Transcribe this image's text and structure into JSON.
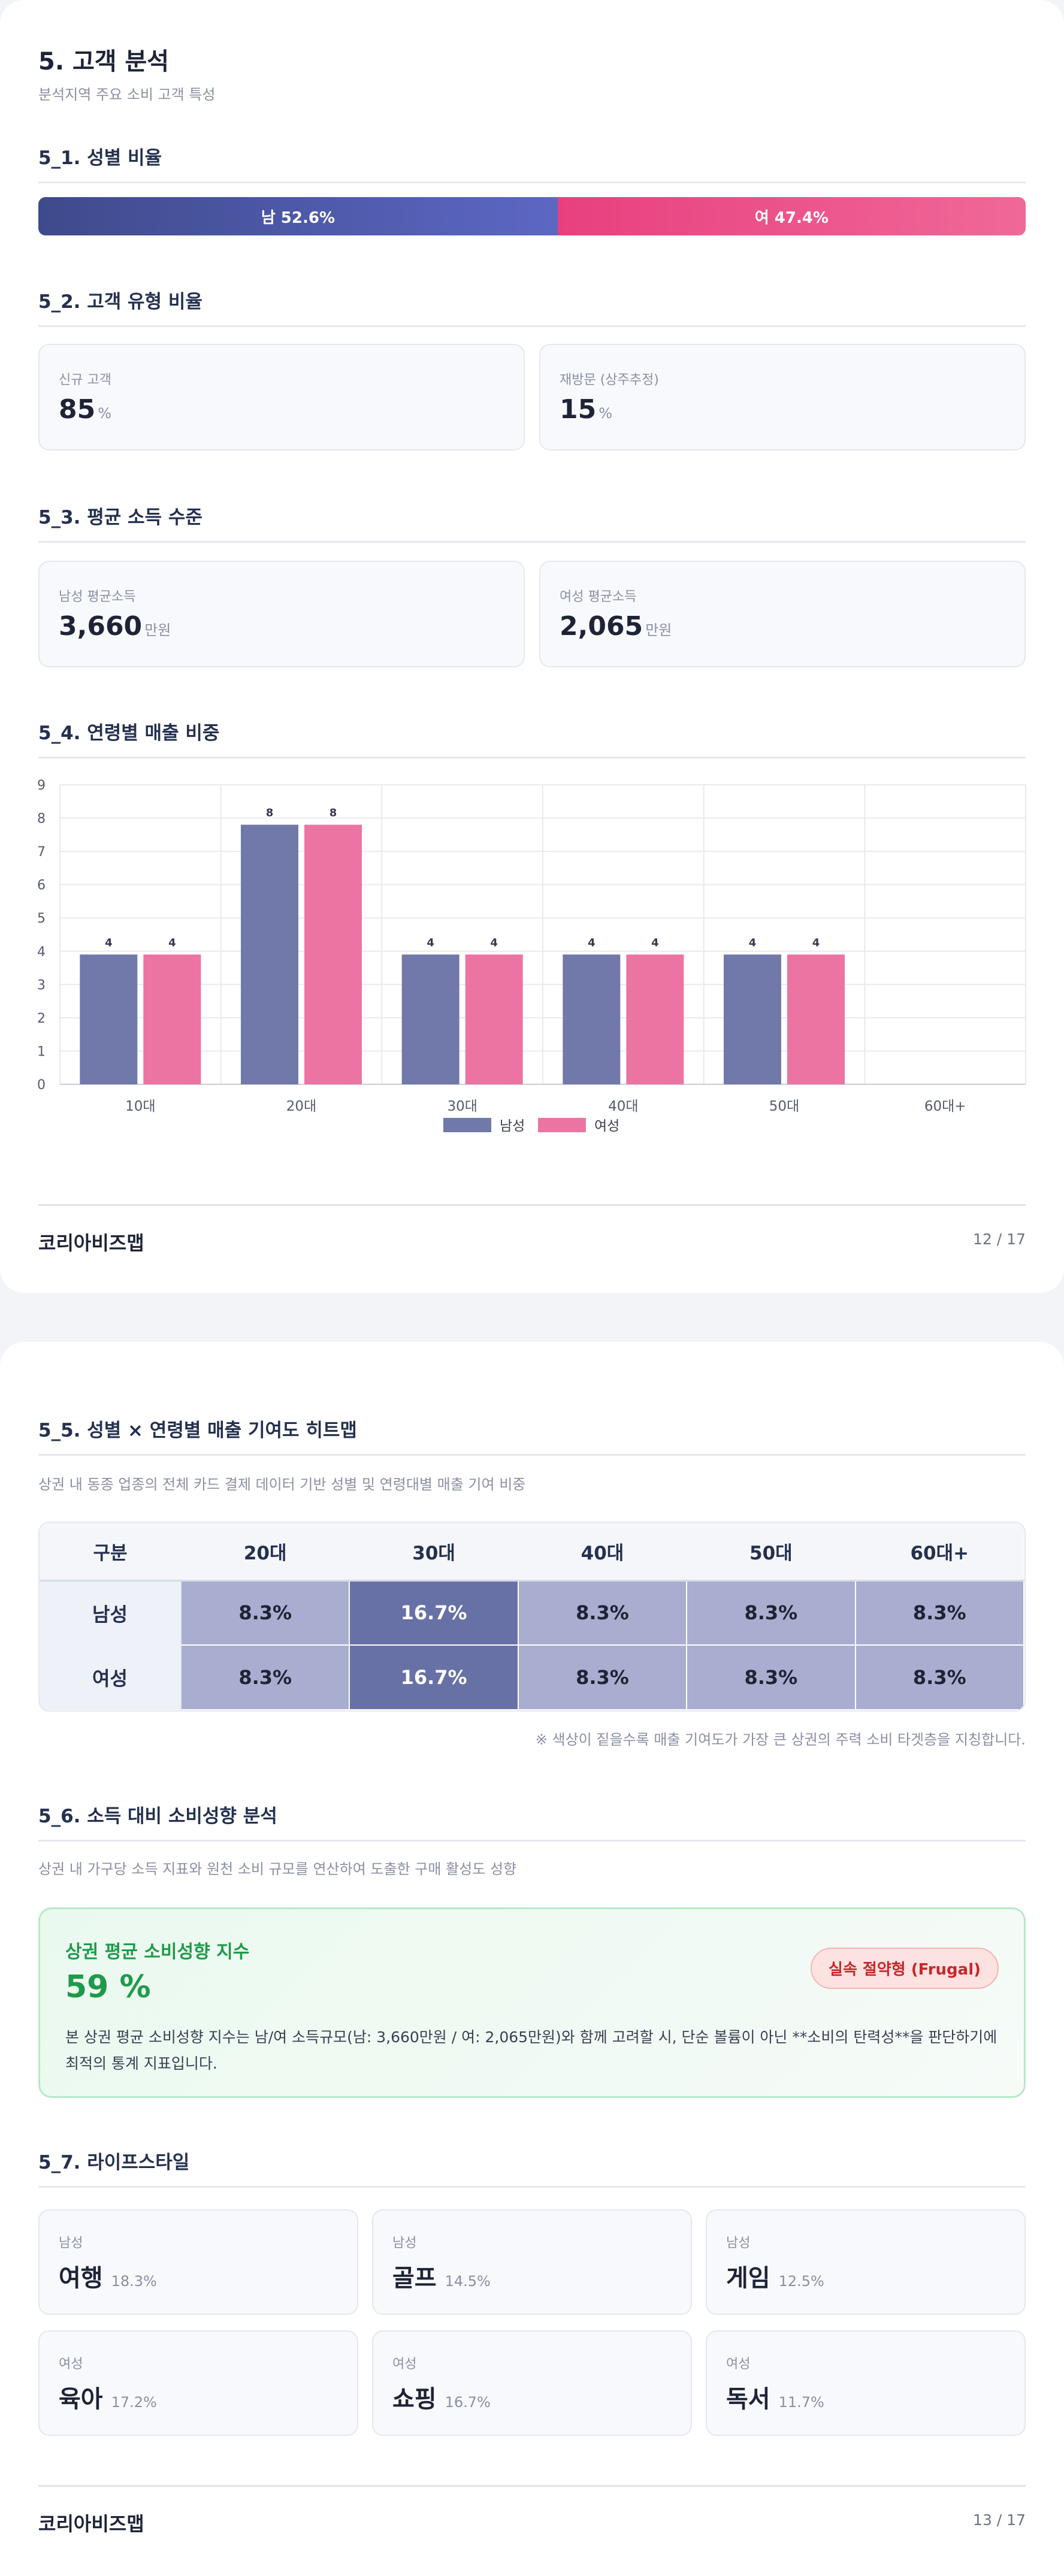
{
  "page1": {
    "title": "5. 고객 분석",
    "subtitle": "분석지역 주요 소비 고객 특성",
    "gender": {
      "heading": "5_1. 성별 비율",
      "male_label": "남 52.6%",
      "female_label": "여 47.4%",
      "male_share": 52.6,
      "female_share": 47.4,
      "male_color": "#4b55a8",
      "female_color": "#ec4f8a"
    },
    "customer_type": {
      "heading": "5_2. 고객 유형 비율",
      "cards": [
        {
          "label": "신규 고객",
          "value": "85",
          "unit": "%"
        },
        {
          "label": "재방문 (상주추정)",
          "value": "15",
          "unit": "%"
        }
      ]
    },
    "income": {
      "heading": "5_3. 평균 소득 수준",
      "cards": [
        {
          "label": "남성 평균소득",
          "value": "3,660",
          "unit": "만원"
        },
        {
          "label": "여성 평균소득",
          "value": "2,065",
          "unit": "만원"
        }
      ]
    },
    "age_heading": "5_4. 연령별 매출 비중",
    "footer": {
      "brand": "코리아비즈맵",
      "page": "12 / 17"
    }
  },
  "chart_data": {
    "type": "bar",
    "categories": [
      "10대",
      "20대",
      "30대",
      "40대",
      "50대",
      "60대+"
    ],
    "series": [
      {
        "name": "남성",
        "values": [
          3.9,
          7.8,
          3.9,
          3.9,
          3.9,
          0
        ],
        "labels": [
          "4",
          "8",
          "4",
          "4",
          "4",
          ""
        ],
        "color": "#7079aa"
      },
      {
        "name": "여성",
        "values": [
          3.9,
          7.8,
          3.9,
          3.9,
          3.9,
          0
        ],
        "labels": [
          "4",
          "8",
          "4",
          "4",
          "4",
          ""
        ],
        "color": "#ec74a3"
      }
    ],
    "yticks": [
      "0",
      "1",
      "2",
      "3",
      "4",
      "5",
      "6",
      "7",
      "8",
      "9"
    ],
    "ylim": [
      0,
      9
    ],
    "grid": true,
    "legend": "bottom-center"
  },
  "page2": {
    "heatmap": {
      "heading": "5_5. 성별 × 연령별 매출 기여도 히트맵",
      "description": "상권 내 동종 업종의 전체 카드 결제 데이터 기반 성별 및 연령대별 매출 기여 비중",
      "columns": [
        "구분",
        "20대",
        "30대",
        "40대",
        "50대",
        "60대+"
      ],
      "rows": [
        {
          "label": "남성",
          "cells": [
            "8.3%",
            "16.7%",
            "8.3%",
            "8.3%",
            "8.3%"
          ]
        },
        {
          "label": "여성",
          "cells": [
            "8.3%",
            "16.7%",
            "8.3%",
            "8.3%",
            "8.3%"
          ]
        }
      ],
      "note": "※ 색상이 짙을수록 매출 기여도가 가장 큰 상권의 주력 소비 타겟층을 지칭합니다."
    },
    "spending": {
      "heading": "5_6. 소득 대비 소비성향 분석",
      "description": "상권 내 가구당 소득 지표와 원천 소비 규모를 연산하여 도출한 구매 활성도 성향",
      "index_title": "상권 평균 소비성향 지수",
      "index_value": "59 %",
      "badge": "실속 절약형 (Frugal)",
      "body": "본 상권 평균 소비성향 지수는 남/여 소득규모(남: 3,660만원 / 여: 2,065만원)와 함께 고려할 시, 단순 볼륨이 아닌 **소비의 탄력성**을 판단하기에 최적의 통계 지표입니다."
    },
    "lifestyle": {
      "heading": "5_7. 라이프스타일",
      "items": [
        {
          "gender": "남성",
          "name": "여행",
          "pct": "18.3%"
        },
        {
          "gender": "남성",
          "name": "골프",
          "pct": "14.5%"
        },
        {
          "gender": "남성",
          "name": "게임",
          "pct": "12.5%"
        },
        {
          "gender": "여성",
          "name": "육아",
          "pct": "17.2%"
        },
        {
          "gender": "여성",
          "name": "쇼핑",
          "pct": "16.7%"
        },
        {
          "gender": "여성",
          "name": "독서",
          "pct": "11.7%"
        }
      ]
    },
    "footer": {
      "brand": "코리아비즈맵",
      "page": "13 / 17"
    }
  }
}
